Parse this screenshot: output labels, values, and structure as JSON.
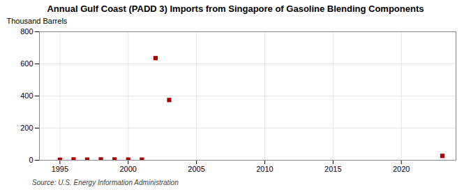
{
  "chart_data": {
    "type": "scatter",
    "title": "Annual Gulf Coast (PADD 3) Imports from Singapore of Gasoline Blending Components",
    "ylabel": "Thousand Barrels",
    "source": "Source: U.S. Energy Information Administration",
    "x": [
      1995,
      1996,
      1997,
      1998,
      1999,
      2000,
      2001,
      2002,
      2003,
      2023
    ],
    "values": [
      3,
      5,
      4,
      5,
      5,
      4,
      4,
      636,
      375,
      27
    ],
    "color": "#aa0000",
    "marker": "square",
    "xlim": [
      1993.5,
      2024
    ],
    "ylim": [
      0,
      800
    ],
    "xticks": [
      1995,
      2000,
      2005,
      2010,
      2015,
      2020
    ],
    "yticks": [
      0,
      200,
      400,
      600,
      800
    ],
    "grid": true
  }
}
